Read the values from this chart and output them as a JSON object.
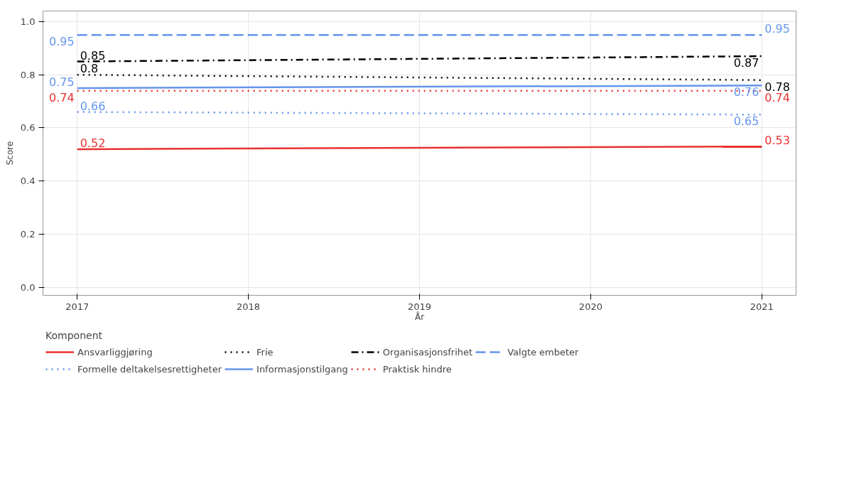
{
  "chart_data": {
    "type": "line",
    "xlabel": "År",
    "ylabel": "Score",
    "legend_title": "Komponent",
    "x": [
      2017,
      2021
    ],
    "series": [
      {
        "name": "Ansvarliggjøring",
        "color": "#e8322f",
        "line_style": "solid",
        "values": [
          0.52,
          0.53
        ]
      },
      {
        "name": "Frie",
        "color": "#000000",
        "line_style": "dotted",
        "values": [
          0.8,
          0.78
        ]
      },
      {
        "name": "Organisasjonsfrihet",
        "color": "#000000",
        "line_style": "dashdot",
        "values": [
          0.85,
          0.87
        ]
      },
      {
        "name": "Valgte embeter",
        "color": "#6495ed",
        "line_style": "dashed",
        "values": [
          0.95,
          0.95
        ]
      },
      {
        "name": "Formelle deltakelsesrettigheter",
        "color": "#6495ed",
        "line_style": "dotted",
        "values": [
          0.66,
          0.65
        ]
      },
      {
        "name": "Informasjonstilgang",
        "color": "#6495ed",
        "line_style": "solid",
        "values": [
          0.75,
          0.76
        ]
      },
      {
        "name": "Praktisk hindre",
        "color": "#e8322f",
        "line_style": "dotted",
        "values": [
          0.74,
          0.74
        ]
      }
    ],
    "xlim": [
      2016.8,
      2021.2
    ],
    "xticks": [
      2017,
      2018,
      2019,
      2020,
      2021
    ],
    "ylim": [
      -0.03,
      1.04
    ],
    "yticks": [
      {
        "value": 0,
        "label": "0.0"
      },
      {
        "value": 0.2,
        "label": "0.2"
      },
      {
        "value": 0.4,
        "label": "0.4"
      },
      {
        "value": 0.6,
        "label": "0.6"
      },
      {
        "value": 0.8,
        "label": "0.8"
      },
      {
        "value": 1,
        "label": "1.0"
      }
    ],
    "grid": true,
    "legend": "bottom",
    "marker": "none",
    "data_labels": true
  }
}
